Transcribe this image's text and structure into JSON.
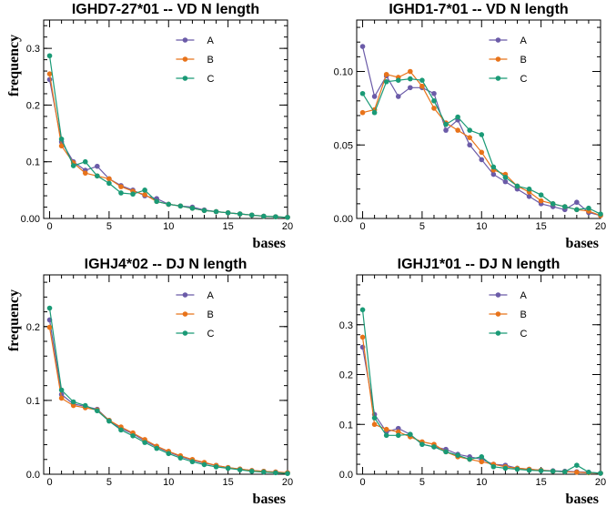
{
  "chart_data": [
    {
      "type": "line",
      "title": "IGHD7-27*01 -- VD N length",
      "xlabel": "bases",
      "ylabel": "frequency",
      "xlim": [
        -0.5,
        20
      ],
      "ylim": [
        0,
        0.35
      ],
      "xticks": [
        0,
        5,
        10,
        15,
        20
      ],
      "xtick_labels": [
        "0",
        "5",
        "10",
        "15",
        "20"
      ],
      "yticks": [
        0,
        0.1,
        0.2,
        0.3
      ],
      "ytick_labels": [
        "0.00",
        "0.1",
        "0.2",
        "0.3"
      ],
      "x": [
        0,
        1,
        2,
        3,
        4,
        5,
        6,
        7,
        8,
        9,
        10,
        11,
        12,
        13,
        14,
        15,
        16,
        17,
        18,
        19,
        20
      ],
      "series": [
        {
          "name": "A",
          "color": "#6b5ba8",
          "values": [
            0.245,
            0.135,
            0.1,
            0.085,
            0.092,
            0.07,
            0.058,
            0.05,
            0.04,
            0.035,
            0.025,
            0.022,
            0.02,
            0.015,
            0.012,
            0.01,
            0.008,
            0.006,
            0.004,
            0.003,
            0.002
          ]
        },
        {
          "name": "B",
          "color": "#e8731a",
          "values": [
            0.255,
            0.128,
            0.098,
            0.08,
            0.075,
            0.07,
            0.056,
            0.048,
            0.042,
            0.03,
            0.025,
            0.022,
            0.018,
            0.014,
            0.012,
            0.01,
            0.008,
            0.006,
            0.004,
            0.003,
            0.002
          ]
        },
        {
          "name": "C",
          "color": "#1a9a76",
          "values": [
            0.287,
            0.14,
            0.093,
            0.1,
            0.075,
            0.062,
            0.045,
            0.043,
            0.05,
            0.03,
            0.025,
            0.022,
            0.018,
            0.014,
            0.012,
            0.01,
            0.008,
            0.006,
            0.004,
            0.003,
            0.002
          ]
        }
      ]
    },
    {
      "type": "line",
      "title": "IGHD1-7*01 -- VD N length",
      "xlabel": "bases",
      "ylabel": "",
      "xlim": [
        -0.5,
        20
      ],
      "ylim": [
        0,
        0.135
      ],
      "xticks": [
        0,
        5,
        10,
        15,
        20
      ],
      "xtick_labels": [
        "0",
        "5",
        "10",
        "15",
        "20"
      ],
      "yticks": [
        0,
        0.05,
        0.1
      ],
      "ytick_labels": [
        "0.00",
        "0.05",
        "0.10"
      ],
      "x": [
        0,
        1,
        2,
        3,
        4,
        5,
        6,
        7,
        8,
        9,
        10,
        11,
        12,
        13,
        14,
        15,
        16,
        17,
        18,
        19,
        20
      ],
      "series": [
        {
          "name": "A",
          "color": "#6b5ba8",
          "values": [
            0.117,
            0.083,
            0.097,
            0.083,
            0.089,
            0.089,
            0.085,
            0.06,
            0.067,
            0.05,
            0.04,
            0.03,
            0.025,
            0.02,
            0.015,
            0.01,
            0.008,
            0.006,
            0.011,
            0.004,
            0.002
          ]
        },
        {
          "name": "B",
          "color": "#e8731a",
          "values": [
            0.072,
            0.074,
            0.098,
            0.096,
            0.1,
            0.09,
            0.075,
            0.065,
            0.06,
            0.055,
            0.045,
            0.033,
            0.03,
            0.022,
            0.018,
            0.012,
            0.01,
            0.008,
            0.006,
            0.005,
            0.002
          ]
        },
        {
          "name": "C",
          "color": "#1a9a76",
          "values": [
            0.085,
            0.072,
            0.093,
            0.094,
            0.095,
            0.094,
            0.08,
            0.064,
            0.069,
            0.06,
            0.057,
            0.035,
            0.028,
            0.022,
            0.02,
            0.016,
            0.01,
            0.008,
            0.006,
            0.007,
            0.003
          ]
        }
      ]
    },
    {
      "type": "line",
      "title": "IGHJ4*02 -- DJ N length",
      "xlabel": "bases",
      "ylabel": "frequency",
      "xlim": [
        -0.5,
        20
      ],
      "ylim": [
        0,
        0.27
      ],
      "xticks": [
        0,
        5,
        10,
        15,
        20
      ],
      "xtick_labels": [
        "0",
        "5",
        "10",
        "15",
        "20"
      ],
      "yticks": [
        0,
        0.1,
        0.2
      ],
      "ytick_labels": [
        "0.0",
        "0.1",
        "0.2"
      ],
      "x": [
        0,
        1,
        2,
        3,
        4,
        5,
        6,
        7,
        8,
        9,
        10,
        11,
        12,
        13,
        14,
        15,
        16,
        17,
        18,
        19,
        20
      ],
      "series": [
        {
          "name": "A",
          "color": "#6b5ba8",
          "values": [
            0.209,
            0.108,
            0.095,
            0.092,
            0.088,
            0.073,
            0.062,
            0.055,
            0.045,
            0.037,
            0.03,
            0.024,
            0.019,
            0.015,
            0.012,
            0.009,
            0.007,
            0.005,
            0.004,
            0.003,
            0.002
          ]
        },
        {
          "name": "B",
          "color": "#e8731a",
          "values": [
            0.199,
            0.103,
            0.093,
            0.09,
            0.087,
            0.073,
            0.064,
            0.056,
            0.047,
            0.038,
            0.031,
            0.025,
            0.02,
            0.016,
            0.012,
            0.009,
            0.007,
            0.005,
            0.004,
            0.003,
            0.002
          ]
        },
        {
          "name": "C",
          "color": "#1a9a76",
          "values": [
            0.225,
            0.114,
            0.098,
            0.093,
            0.086,
            0.072,
            0.06,
            0.052,
            0.043,
            0.035,
            0.028,
            0.022,
            0.017,
            0.013,
            0.01,
            0.008,
            0.006,
            0.004,
            0.003,
            0.002,
            0.001
          ]
        }
      ]
    },
    {
      "type": "line",
      "title": "IGHJ1*01 -- DJ N length",
      "xlabel": "bases",
      "ylabel": "",
      "xlim": [
        -0.5,
        20
      ],
      "ylim": [
        0,
        0.4
      ],
      "xticks": [
        0,
        5,
        10,
        15,
        20
      ],
      "xtick_labels": [
        "0",
        "5",
        "10",
        "15",
        "20"
      ],
      "yticks": [
        0,
        0.1,
        0.2,
        0.3
      ],
      "ytick_labels": [
        "0.0",
        "0.1",
        "0.2",
        "0.3"
      ],
      "x": [
        0,
        1,
        2,
        3,
        4,
        5,
        6,
        7,
        8,
        9,
        10,
        11,
        12,
        13,
        14,
        15,
        16,
        17,
        18,
        19,
        20
      ],
      "series": [
        {
          "name": "A",
          "color": "#6b5ba8",
          "values": [
            0.255,
            0.12,
            0.085,
            0.092,
            0.08,
            0.06,
            0.055,
            0.05,
            0.04,
            0.035,
            0.03,
            0.02,
            0.018,
            0.012,
            0.01,
            0.008,
            0.007,
            0.006,
            0.005,
            0.004,
            0.002
          ]
        },
        {
          "name": "B",
          "color": "#e8731a",
          "values": [
            0.275,
            0.1,
            0.09,
            0.085,
            0.075,
            0.065,
            0.06,
            0.045,
            0.035,
            0.03,
            0.025,
            0.02,
            0.015,
            0.012,
            0.01,
            0.008,
            0.006,
            0.005,
            0.004,
            0.003,
            0.002
          ]
        },
        {
          "name": "C",
          "color": "#1a9a76",
          "values": [
            0.33,
            0.113,
            0.078,
            0.078,
            0.08,
            0.06,
            0.055,
            0.045,
            0.038,
            0.03,
            0.035,
            0.015,
            0.012,
            0.01,
            0.008,
            0.007,
            0.006,
            0.005,
            0.018,
            0.004,
            0.002
          ]
        }
      ]
    }
  ]
}
